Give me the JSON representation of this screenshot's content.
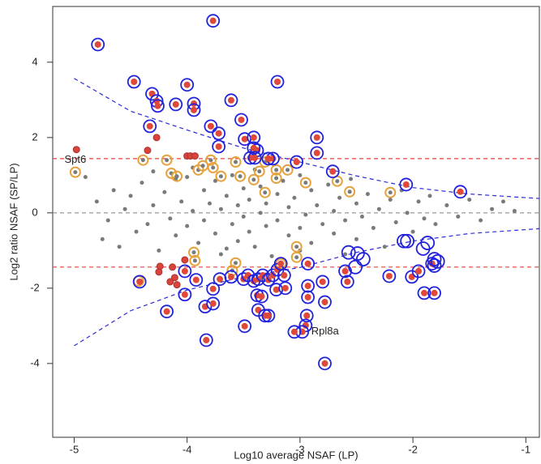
{
  "chart_data": {
    "type": "scatter",
    "x_label": "Log10 average NSAF (LP)",
    "y_label": "Log2 ratio NSAF (SP/LP)",
    "xlim": [
      -5.19,
      -0.88
    ],
    "ylim": [
      -5.96,
      5.48
    ],
    "xticks": [
      -5,
      -4,
      -3,
      -2,
      -1
    ],
    "yticks": [
      -4,
      -2,
      0,
      2,
      4
    ],
    "hlines": [
      {
        "value": 1.44,
        "color": "#e8413a"
      },
      {
        "value": -1.44,
        "color": "#e8413a"
      },
      {
        "value": 0,
        "color": "#999999"
      }
    ],
    "curves": [
      {
        "color": "#2a2ad8",
        "x": [
          -5,
          -4.5,
          -4,
          -3.5,
          -3,
          -2.5,
          -2,
          -1.5,
          -0.88
        ],
        "values": [
          3.57,
          2.7,
          2.2,
          1.72,
          1.35,
          0.98,
          0.67,
          0.5,
          0.38
        ]
      },
      {
        "color": "#2a2ad8",
        "x": [
          -5,
          -4.5,
          -4,
          -3.5,
          -3,
          -2.5,
          -2,
          -1.5,
          -0.88
        ],
        "values": [
          -3.53,
          -2.6,
          -2.05,
          -1.7,
          -1.45,
          -1.05,
          -0.75,
          -0.55,
          -0.42
        ]
      }
    ],
    "annotations": [
      {
        "text": "Spt6",
        "x": -4.99,
        "y": 1.4,
        "anchor": "middle"
      },
      {
        "text": "Rpl8a",
        "x": -2.9,
        "y": -3.16,
        "anchor": "start"
      }
    ],
    "series": [
      {
        "marker": "dot",
        "color": "#7a7a7a",
        "x": [
          -4.9,
          -4.8,
          -4.7,
          -4.65,
          -4.6,
          -4.55,
          -4.5,
          -4.45,
          -4.4,
          -4.35,
          -4.3,
          -4.3,
          -4.25,
          -4.2,
          -4.15,
          -4.1,
          -4.1,
          -4.05,
          -4.0,
          -3.95,
          -3.95,
          -3.9,
          -3.85,
          -3.85,
          -3.8,
          -3.75,
          -3.75,
          -3.7,
          -3.7,
          -3.65,
          -3.6,
          -3.6,
          -3.55,
          -3.55,
          -3.5,
          -3.5,
          -3.45,
          -3.45,
          -3.4,
          -3.4,
          -3.35,
          -3.35,
          -3.3,
          -3.3,
          -3.25,
          -3.2,
          -3.2,
          -3.15,
          -3.1,
          -3.1,
          -3.05,
          -3.0,
          -3.0,
          -2.95,
          -2.9,
          -2.9,
          -2.85,
          -2.8,
          -2.75,
          -2.7,
          -2.7,
          -2.65,
          -2.6,
          -2.55,
          -2.5,
          -2.5,
          -2.45,
          -2.4,
          -2.35,
          -2.3,
          -2.25,
          -2.2,
          -2.15,
          -2.1,
          -2.05,
          -2.0,
          -1.95,
          -1.9,
          -1.85,
          -1.8,
          -1.7,
          -1.6,
          -1.5,
          -1.4,
          -1.3,
          -1.2,
          -1.1,
          -4.75,
          -4.0,
          -3.65,
          -3.0,
          -2.6
        ],
        "values": [
          0.95,
          0.3,
          -0.2,
          0.6,
          -0.9,
          0.1,
          0.45,
          -0.5,
          0.8,
          -0.3,
          1.1,
          0.2,
          -1.0,
          0.55,
          -0.15,
          0.9,
          -0.6,
          0.3,
          -0.35,
          1.2,
          0.05,
          -0.8,
          0.6,
          -0.2,
          0.25,
          -0.55,
          0.85,
          -1.1,
          0.1,
          0.45,
          -0.3,
          1.0,
          -0.75,
          0.2,
          0.65,
          -0.1,
          -0.5,
          0.35,
          1.15,
          -0.9,
          0.0,
          0.7,
          -0.35,
          0.25,
          -1.15,
          0.5,
          -0.2,
          0.85,
          -0.6,
          0.15,
          0.4,
          -0.4,
          1.0,
          -0.05,
          0.6,
          -0.8,
          0.2,
          -0.3,
          0.75,
          -0.55,
          0.05,
          0.4,
          -0.2,
          0.9,
          -0.7,
          0.25,
          -0.1,
          0.5,
          -0.4,
          0.1,
          -0.9,
          0.35,
          -0.25,
          0.6,
          0.0,
          -0.5,
          0.3,
          -0.15,
          0.45,
          -0.3,
          0.2,
          -0.1,
          0.35,
          -0.2,
          0.1,
          0.3,
          0.05,
          -0.7,
          0.95,
          -0.95,
          -1.0,
          -1.1
        ]
      },
      {
        "marker": "small-red",
        "color": "#d9433a",
        "x": [
          -4.98,
          -4.35,
          -4.27,
          -4.0,
          -3.97,
          -3.93,
          -4.24,
          -4.13,
          -4.11,
          -4.15,
          -4.09,
          -4.25,
          -4.02
        ],
        "values": [
          1.68,
          1.66,
          2.0,
          1.51,
          1.51,
          1.51,
          -1.42,
          -1.44,
          -1.72,
          -1.83,
          -1.91,
          -1.57,
          -1.25
        ]
      },
      {
        "marker": "orange-ring",
        "color": "#e6a23c",
        "x": [
          -4.99,
          -4.39,
          -4.18,
          -4.14,
          -4.09,
          -3.9,
          -3.86,
          -3.79,
          -3.7,
          -3.77,
          -3.57,
          -3.53,
          -3.41,
          -3.36,
          -3.31,
          -3.21,
          -3.11,
          -2.95,
          -3.31,
          -3.21,
          -2.56,
          -2.2,
          -2.67,
          -4.43,
          -3.94,
          -3.93,
          -3.57,
          -3.6,
          -3.17,
          -3.03,
          -3.03
        ],
        "values": [
          1.08,
          1.4,
          1.4,
          1.05,
          0.97,
          1.14,
          1.25,
          1.4,
          0.97,
          1.2,
          1.35,
          0.97,
          0.88,
          1.1,
          1.35,
          1.14,
          1.14,
          0.8,
          0.54,
          0.92,
          0.56,
          0.54,
          0.84,
          -1.81,
          -1.05,
          -1.27,
          -1.33,
          -1.53,
          -1.35,
          -0.9,
          -1.18
        ]
      },
      {
        "marker": "blue-ring",
        "color": "#2222dd",
        "fill": "#e0483a",
        "x": [
          -4.79,
          -3.77,
          -4.47,
          -4.31,
          -4.27,
          -4.26,
          -4.1,
          -4.0,
          -3.94,
          -3.94,
          -4.33,
          -3.79,
          -3.72,
          -3.72,
          -3.61,
          -3.52,
          -3.2,
          -3.49,
          -3.41,
          -3.38,
          -3.41,
          -3.44,
          -3.4,
          -3.24,
          -3.28,
          -3.03,
          -2.85,
          -2.85,
          -2.71,
          -2.06,
          -1.58,
          -4.42,
          -4.02,
          -4.02,
          -4.18,
          -3.77,
          -3.92,
          -3.84,
          -3.77,
          -3.83,
          -3.71,
          -3.61,
          -3.5,
          -3.46,
          -3.41,
          -3.37,
          -3.33,
          -3.28,
          -3.24,
          -3.2,
          -3.17,
          -3.14,
          -3.21,
          -3.13,
          -3.38,
          -3.34,
          -3.37,
          -3.31,
          -3.28,
          -3.49,
          -2.93,
          -2.93,
          -2.94,
          -2.95,
          -2.98,
          -3.05,
          -2.93,
          -2.8,
          -2.78,
          -2.78,
          -2.6,
          -2.58,
          -2.21,
          -2.01,
          -1.95,
          -1.9,
          -1.81,
          -1.83
        ],
        "values": [
          4.47,
          5.1,
          3.48,
          3.16,
          2.97,
          2.84,
          2.88,
          3.4,
          2.9,
          2.73,
          2.3,
          2.3,
          2.11,
          1.76,
          2.99,
          2.47,
          3.48,
          1.96,
          2.0,
          1.66,
          1.72,
          1.46,
          1.46,
          1.44,
          1.44,
          1.35,
          1.59,
          2.0,
          1.1,
          0.75,
          0.56,
          -1.83,
          -1.55,
          -2.17,
          -2.62,
          -2.02,
          -1.78,
          -2.49,
          -2.41,
          -3.38,
          -1.76,
          -1.7,
          -1.76,
          -1.66,
          -1.81,
          -1.76,
          -1.66,
          -1.78,
          -1.66,
          -1.51,
          -1.35,
          -1.66,
          -2.04,
          -2.0,
          -2.19,
          -2.22,
          -2.58,
          -2.73,
          -2.73,
          -3.01,
          -1.94,
          -2.24,
          -2.73,
          -2.99,
          -3.16,
          -3.16,
          -1.35,
          -1.83,
          -2.37,
          -4.0,
          -1.55,
          -1.83,
          -1.68,
          -1.7,
          -1.55,
          -2.13,
          -2.13,
          -1.35
        ]
      },
      {
        "marker": "blue-hollow",
        "color": "#2222dd",
        "x": [
          -2.57,
          -2.51,
          -2.44,
          -2.49,
          -2.08,
          -2.05,
          -1.91,
          -1.87,
          -1.81,
          -1.78,
          -1.81
        ],
        "values": [
          -1.05,
          -1.44,
          -1.23,
          -1.08,
          -0.75,
          -0.75,
          -0.95,
          -0.8,
          -1.23,
          -1.29,
          -1.4
        ]
      }
    ]
  }
}
